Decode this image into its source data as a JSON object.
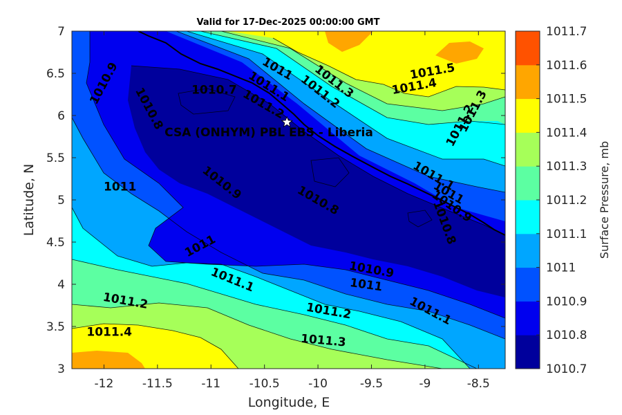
{
  "chart_data": {
    "type": "heatmap",
    "subtype": "filled-contour",
    "title": "Valid for 17-Dec-2025 00:00:00 GMT",
    "xlabel": "Longitude, E",
    "ylabel": "Latitude, N",
    "xlim": [
      -12.3,
      -8.25
    ],
    "ylim": [
      3,
      7
    ],
    "xticks": [
      -12,
      -11.5,
      -11,
      -10.5,
      -10,
      -9.5,
      -9,
      -8.5
    ],
    "xtick_labels": [
      "-12",
      "-11.5",
      "-11",
      "-10.5",
      "-10",
      "-9.5",
      "-9",
      "-8.5"
    ],
    "yticks": [
      3,
      3.5,
      4,
      4.5,
      5,
      5.5,
      6,
      6.5,
      7
    ],
    "ytick_labels": [
      "3",
      "3.5",
      "4",
      "4.5",
      "5",
      "5.5",
      "6",
      "6.5",
      "7"
    ],
    "colorbar": {
      "label": "Surface Pressure, mb",
      "levels": [
        1010.7,
        1010.8,
        1010.9,
        1011,
        1011.1,
        1011.2,
        1011.3,
        1011.4,
        1011.5,
        1011.6,
        1011.7
      ],
      "tick_labels": [
        "1010.7",
        "1010.8",
        "1010.9",
        "1011",
        "1011.1",
        "1011.2",
        "1011.3",
        "1011.4",
        "1011.5",
        "1011.6",
        "1011.7"
      ],
      "colors": [
        "#00009c",
        "#0000ef",
        "#0052ff",
        "#00a6ff",
        "#00ffff",
        "#5cffa2",
        "#a6ff59",
        "#ffff00",
        "#ffa600",
        "#ff5200",
        "#ff0000"
      ]
    },
    "contour_labels": [
      {
        "text": "1010.9",
        "lon": -12.0,
        "lat": 6.38,
        "angle": -62
      },
      {
        "text": "1010.8",
        "lon": -11.58,
        "lat": 6.08,
        "angle": 62
      },
      {
        "text": "1010.7",
        "lon": -10.97,
        "lat": 6.3,
        "angle": 0
      },
      {
        "text": "1011",
        "lon": -11.85,
        "lat": 5.15,
        "angle": 0
      },
      {
        "text": "1010.9",
        "lon": -10.9,
        "lat": 5.2,
        "angle": 38
      },
      {
        "text": "1010.8",
        "lon": -10.0,
        "lat": 4.99,
        "angle": 30
      },
      {
        "text": "1011",
        "lon": -11.1,
        "lat": 4.45,
        "angle": -28
      },
      {
        "text": "1011.1",
        "lon": -10.8,
        "lat": 4.05,
        "angle": 22
      },
      {
        "text": "1011.2",
        "lon": -11.8,
        "lat": 3.8,
        "angle": 10
      },
      {
        "text": "1011.4",
        "lon": -11.95,
        "lat": 3.43,
        "angle": 0
      },
      {
        "text": "1011.2",
        "lon": -9.9,
        "lat": 3.68,
        "angle": 10
      },
      {
        "text": "1011.3",
        "lon": -9.95,
        "lat": 3.33,
        "angle": 5
      },
      {
        "text": "1010.9",
        "lon": -9.5,
        "lat": 4.17,
        "angle": 10
      },
      {
        "text": "1011",
        "lon": -9.55,
        "lat": 3.99,
        "angle": 8
      },
      {
        "text": "1011.1",
        "lon": -8.95,
        "lat": 3.68,
        "angle": 28
      },
      {
        "text": "1011",
        "lon": -10.38,
        "lat": 6.55,
        "angle": 30
      },
      {
        "text": "1011.1",
        "lon": -10.46,
        "lat": 6.34,
        "angle": 32
      },
      {
        "text": "1011.2",
        "lon": -10.51,
        "lat": 6.13,
        "angle": 30
      },
      {
        "text": "1011.3",
        "lon": -9.85,
        "lat": 6.4,
        "angle": 38
      },
      {
        "text": "1011.2",
        "lon": -9.98,
        "lat": 6.28,
        "angle": 38
      },
      {
        "text": "1011.5",
        "lon": -8.93,
        "lat": 6.52,
        "angle": -10
      },
      {
        "text": "1011.4",
        "lon": -9.1,
        "lat": 6.34,
        "angle": -10
      },
      {
        "text": "1011.3",
        "lon": -8.55,
        "lat": 6.05,
        "angle": -62
      },
      {
        "text": "1011.2",
        "lon": -8.67,
        "lat": 5.88,
        "angle": -62
      },
      {
        "text": "1011.1",
        "lon": -8.92,
        "lat": 5.28,
        "angle": 30
      },
      {
        "text": "1011",
        "lon": -8.78,
        "lat": 5.08,
        "angle": 30
      },
      {
        "text": "1010.9",
        "lon": -8.75,
        "lat": 4.92,
        "angle": 35
      },
      {
        "text": "1010.8",
        "lon": -8.82,
        "lat": 4.73,
        "angle": 70
      }
    ],
    "station": {
      "name": "CSA (ONHYM) PBL EBS  - Liberia",
      "lon": -10.29,
      "lat": 5.92,
      "marker": "star"
    }
  }
}
